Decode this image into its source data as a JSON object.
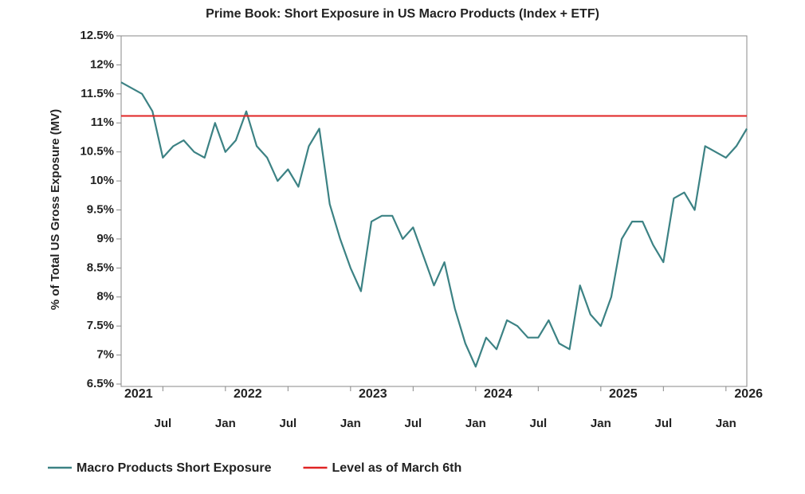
{
  "chart_data": {
    "type": "line",
    "title": "Prime Book: Short Exposure in US Macro Products (Index + ETF)",
    "y_label": "% of Total US Gross Exposure (MV)",
    "x": [
      "2021-03",
      "2021-04",
      "2021-05",
      "2021-06",
      "2021-07",
      "2021-08",
      "2021-09",
      "2021-10",
      "2021-11",
      "2021-12",
      "2022-01",
      "2022-02",
      "2022-03",
      "2022-04",
      "2022-05",
      "2022-06",
      "2022-07",
      "2022-08",
      "2022-09",
      "2022-10",
      "2022-11",
      "2022-12",
      "2023-01",
      "2023-02",
      "2023-03",
      "2023-04",
      "2023-05",
      "2023-06",
      "2023-07",
      "2023-08",
      "2023-09",
      "2023-10",
      "2023-11",
      "2023-12",
      "2024-01",
      "2024-02",
      "2024-03",
      "2024-04",
      "2024-05",
      "2024-06",
      "2024-07",
      "2024-08",
      "2024-09",
      "2024-10",
      "2024-11",
      "2024-12",
      "2025-01",
      "2025-02",
      "2025-03",
      "2025-04",
      "2025-05",
      "2025-06",
      "2025-07",
      "2025-08",
      "2025-09",
      "2025-10",
      "2025-11",
      "2025-12",
      "2026-01",
      "2026-02",
      "2026-03"
    ],
    "series": [
      {
        "name": "Macro Products Short Exposure",
        "color": "#3c8284",
        "values": [
          11.7,
          11.6,
          11.5,
          11.2,
          10.4,
          10.6,
          10.7,
          10.5,
          10.4,
          11.0,
          10.5,
          10.7,
          11.2,
          10.6,
          10.4,
          10.0,
          10.2,
          9.9,
          10.6,
          10.9,
          9.6,
          9.0,
          8.5,
          8.1,
          9.3,
          9.4,
          9.4,
          9.0,
          9.2,
          8.7,
          8.2,
          8.6,
          7.8,
          7.2,
          6.8,
          7.3,
          7.1,
          7.6,
          7.5,
          7.3,
          7.3,
          7.6,
          7.2,
          7.1,
          8.2,
          7.7,
          7.5,
          8.0,
          9.0,
          9.3,
          9.3,
          8.9,
          8.6,
          9.7,
          9.8,
          9.5,
          10.6,
          10.5,
          10.4,
          10.6,
          10.9
        ]
      }
    ],
    "reference_lines": [
      {
        "name": "Level as of March 6th",
        "value": 11.12,
        "color": "#e02424"
      }
    ],
    "xlim": [
      "2021-03",
      "2026-03"
    ],
    "xticks": [
      {
        "value": "2021-07",
        "label": "Jul"
      },
      {
        "value": "2022-01",
        "label": "Jan"
      },
      {
        "value": "2022-07",
        "label": "Jul"
      },
      {
        "value": "2023-01",
        "label": "Jan"
      },
      {
        "value": "2023-07",
        "label": "Jul"
      },
      {
        "value": "2024-01",
        "label": "Jan"
      },
      {
        "value": "2024-07",
        "label": "Jul"
      },
      {
        "value": "2025-01",
        "label": "Jan"
      },
      {
        "value": "2025-07",
        "label": "Jul"
      },
      {
        "value": "2026-01",
        "label": "Jan"
      }
    ],
    "year_labels": [
      {
        "value": "2021-03",
        "label": "2021"
      },
      {
        "value": "2022-01",
        "label": "2022"
      },
      {
        "value": "2023-01",
        "label": "2023"
      },
      {
        "value": "2024-01",
        "label": "2024"
      },
      {
        "value": "2025-01",
        "label": "2025"
      },
      {
        "value": "2026-01",
        "label": "2026"
      }
    ],
    "ylim": [
      6.5,
      12.5
    ],
    "yticks": [
      {
        "value": 6.5,
        "label": "6.5%"
      },
      {
        "value": 7,
        "label": "7%"
      },
      {
        "value": 7.5,
        "label": "7.5%"
      },
      {
        "value": 8,
        "label": "8%"
      },
      {
        "value": 8.5,
        "label": "8.5%"
      },
      {
        "value": 9,
        "label": "9%"
      },
      {
        "value": 9.5,
        "label": "9.5%"
      },
      {
        "value": 10,
        "label": "10%"
      },
      {
        "value": 10.5,
        "label": "10.5%"
      },
      {
        "value": 11,
        "label": "11%"
      },
      {
        "value": 11.5,
        "label": "11.5%"
      },
      {
        "value": 12,
        "label": "12%"
      },
      {
        "value": 12.5,
        "label": "12.5%"
      }
    ]
  }
}
